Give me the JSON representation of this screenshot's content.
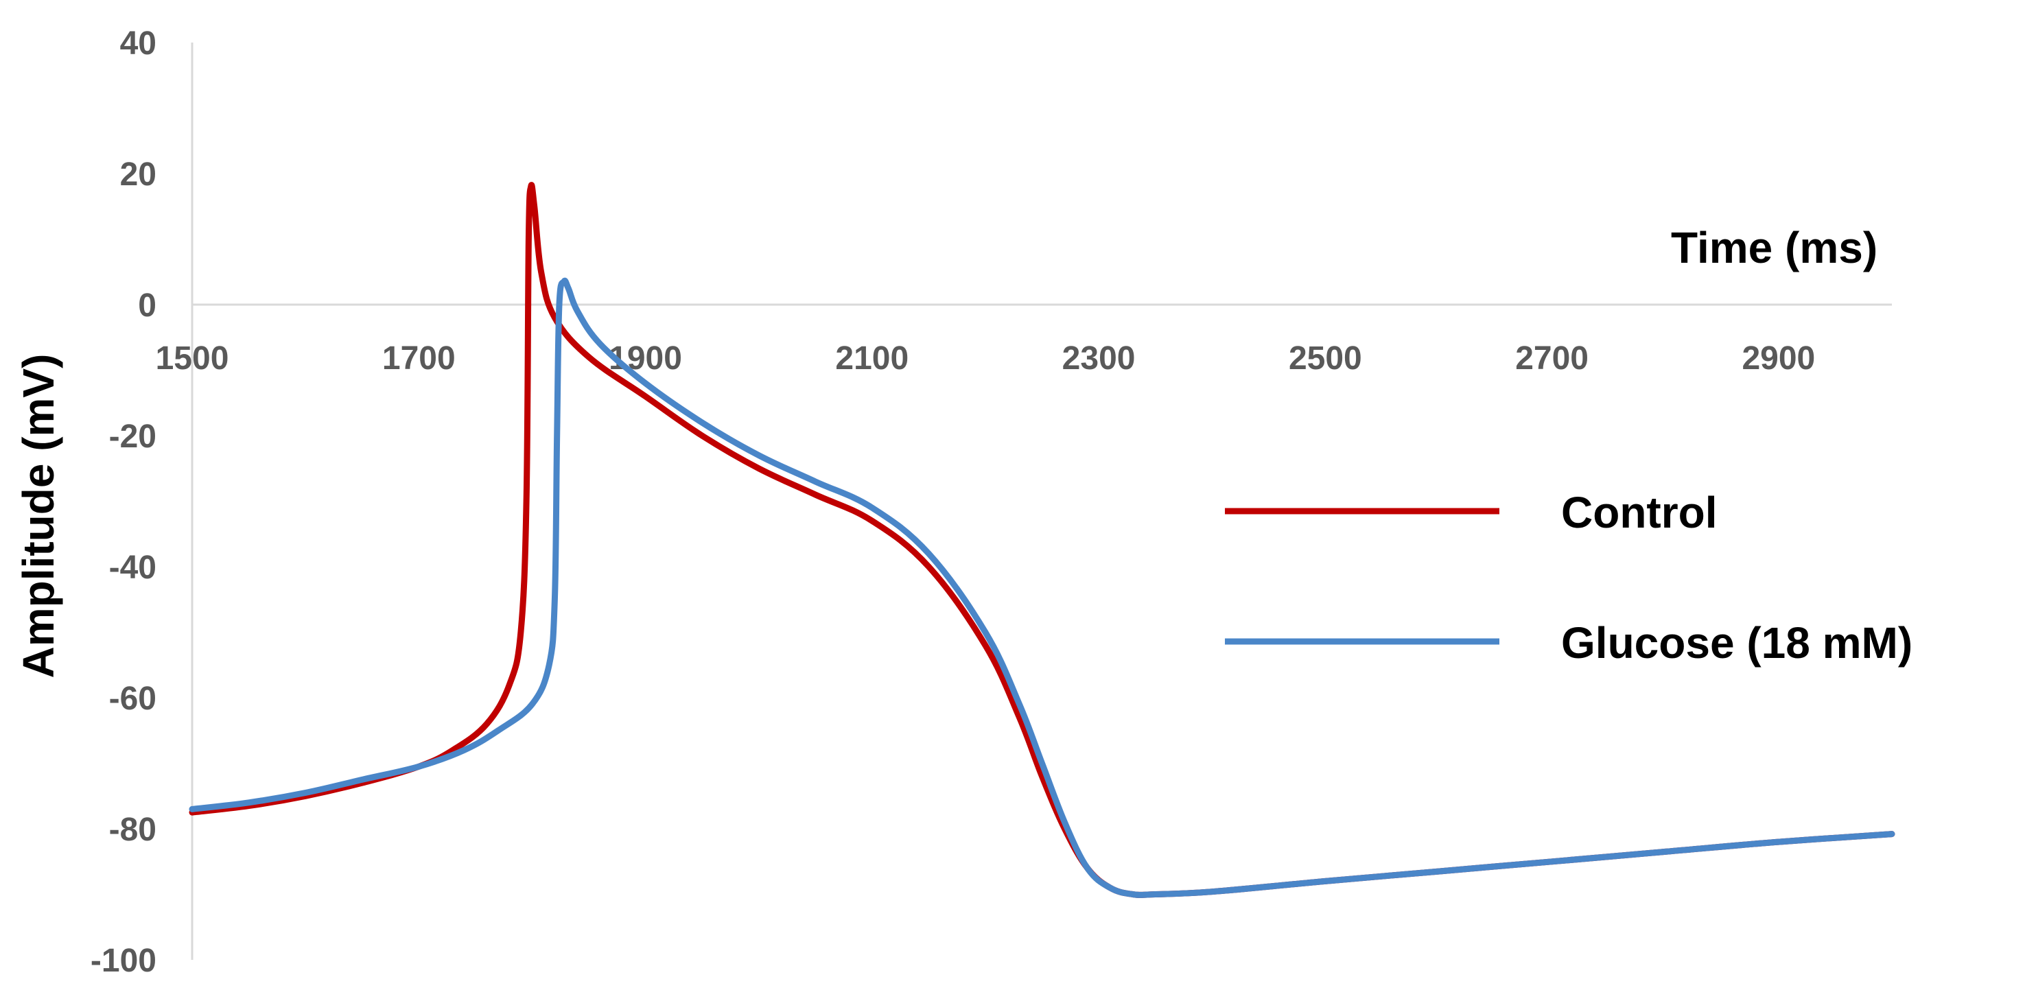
{
  "chart_data": {
    "type": "line",
    "title": "",
    "xlabel": "Time (ms)",
    "ylabel": "Amplitude (mV)",
    "xlim": [
      1500,
      3000
    ],
    "ylim": [
      -100,
      40
    ],
    "x_ticks": [
      "1500",
      "1700",
      "1900",
      "2100",
      "2300",
      "2500",
      "2700",
      "2900"
    ],
    "y_ticks": [
      "40",
      "20",
      "0",
      "-20",
      "-40",
      "-60",
      "-80",
      "-100"
    ],
    "x_tick_values": [
      1500,
      1700,
      1900,
      2100,
      2300,
      2500,
      2700,
      2900
    ],
    "y_tick_values": [
      40,
      20,
      0,
      -20,
      -40,
      -60,
      -80,
      -100
    ],
    "grid": false,
    "legend": "right",
    "series": [
      {
        "name": "Control",
        "color": "#c00000",
        "points": [
          [
            1500,
            -77.5
          ],
          [
            1550,
            -76.5
          ],
          [
            1600,
            -75
          ],
          [
            1650,
            -73
          ],
          [
            1700,
            -70.5
          ],
          [
            1730,
            -68
          ],
          [
            1760,
            -64
          ],
          [
            1780,
            -58
          ],
          [
            1790,
            -50
          ],
          [
            1795,
            -30
          ],
          [
            1797,
            10
          ],
          [
            1799,
            18
          ],
          [
            1802,
            15
          ],
          [
            1808,
            5
          ],
          [
            1820,
            -2
          ],
          [
            1850,
            -8
          ],
          [
            1900,
            -14
          ],
          [
            1950,
            -20
          ],
          [
            2000,
            -25
          ],
          [
            2050,
            -29
          ],
          [
            2100,
            -33
          ],
          [
            2150,
            -40
          ],
          [
            2200,
            -52
          ],
          [
            2230,
            -63
          ],
          [
            2250,
            -72
          ],
          [
            2270,
            -80
          ],
          [
            2290,
            -86
          ],
          [
            2310,
            -89
          ],
          [
            2330,
            -90
          ],
          [
            2350,
            -90
          ],
          [
            2400,
            -89.6
          ],
          [
            2500,
            -88
          ],
          [
            2600,
            -86.5
          ],
          [
            2700,
            -85
          ],
          [
            2800,
            -83.5
          ],
          [
            2900,
            -82
          ],
          [
            3000,
            -80.8
          ]
        ]
      },
      {
        "name": "Glucose (18 mM)",
        "color": "#4a86c8",
        "points": [
          [
            1500,
            -77
          ],
          [
            1550,
            -76
          ],
          [
            1600,
            -74.5
          ],
          [
            1650,
            -72.5
          ],
          [
            1700,
            -70.5
          ],
          [
            1740,
            -68
          ],
          [
            1770,
            -65
          ],
          [
            1800,
            -61
          ],
          [
            1815,
            -55
          ],
          [
            1820,
            -45
          ],
          [
            1822,
            -20
          ],
          [
            1824,
            0
          ],
          [
            1828,
            3.5
          ],
          [
            1832,
            2.5
          ],
          [
            1840,
            -1
          ],
          [
            1860,
            -6
          ],
          [
            1900,
            -12
          ],
          [
            1950,
            -18
          ],
          [
            2000,
            -23
          ],
          [
            2050,
            -27
          ],
          [
            2100,
            -31
          ],
          [
            2150,
            -38
          ],
          [
            2200,
            -50
          ],
          [
            2230,
            -61
          ],
          [
            2250,
            -70
          ],
          [
            2270,
            -79
          ],
          [
            2290,
            -86
          ],
          [
            2310,
            -89
          ],
          [
            2330,
            -90
          ],
          [
            2350,
            -90
          ],
          [
            2400,
            -89.6
          ],
          [
            2500,
            -88
          ],
          [
            2600,
            -86.5
          ],
          [
            2700,
            -85
          ],
          [
            2800,
            -83.5
          ],
          [
            2900,
            -82
          ],
          [
            3000,
            -80.8
          ]
        ]
      }
    ]
  }
}
